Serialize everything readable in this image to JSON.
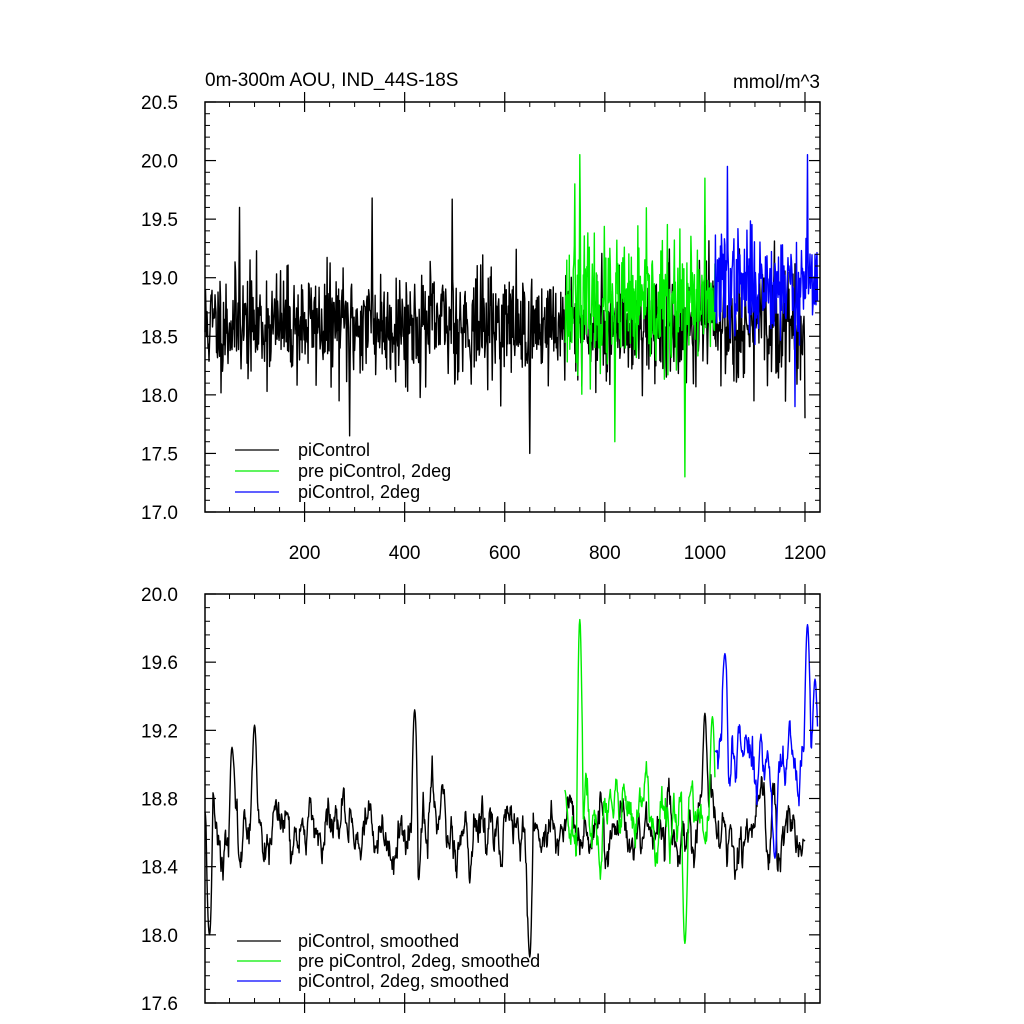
{
  "chart_data": [
    {
      "type": "line",
      "title": "0m-300m AOU, IND_44S-18S",
      "units": "mmol/m^3",
      "xlabel": "",
      "ylabel": "",
      "xlim": [
        1,
        1230
      ],
      "ylim": [
        17.0,
        20.5
      ],
      "xticks": [
        200,
        400,
        600,
        800,
        1000,
        1200
      ],
      "xtick_labels": [
        "200",
        "400",
        "600",
        "800",
        "1000",
        "1200"
      ],
      "yticks": [
        17.0,
        17.5,
        18.0,
        18.5,
        19.0,
        19.5,
        20.0,
        20.5
      ],
      "ytick_labels": [
        "17.0",
        "17.5",
        "18.0",
        "18.5",
        "19.0",
        "19.5",
        "20.0",
        "20.5"
      ],
      "legend_position": "bottom-left",
      "series": [
        {
          "name": "piControl",
          "color": "#000000",
          "x_start": 1,
          "x_end": 1200,
          "mean": 18.6,
          "amplitude": 0.42,
          "seed": 11,
          "anchors": [
            [
              70,
              19.6
            ],
            [
              290,
              17.65
            ],
            [
              335,
              19.68
            ],
            [
              495,
              19.67
            ],
            [
              650,
              17.5
            ],
            [
              1000,
              19.45
            ],
            [
              1200,
              17.8
            ]
          ]
        },
        {
          "name": "pre piControl, 2deg",
          "color": "#00ee00",
          "x_start": 720,
          "x_end": 1020,
          "mean": 18.75,
          "amplitude": 0.5,
          "seed": 23,
          "anchors": [
            [
              750,
              20.05
            ],
            [
              740,
              19.8
            ],
            [
              820,
              17.6
            ],
            [
              960,
              17.3
            ],
            [
              1000,
              19.85
            ]
          ]
        },
        {
          "name": "piControl, 2deg",
          "color": "#0000ff",
          "x_start": 1020,
          "x_end": 1225,
          "mean": 18.95,
          "amplitude": 0.4,
          "seed": 37,
          "anchors": [
            [
              1045,
              19.95
            ],
            [
              1180,
              17.9
            ],
            [
              1205,
              20.05
            ],
            [
              1220,
              19.2
            ]
          ]
        }
      ]
    },
    {
      "type": "line",
      "title": "",
      "xlabel": "",
      "ylabel": "",
      "xlim": [
        1,
        1230
      ],
      "ylim": [
        17.6,
        20.0
      ],
      "xticks": [
        200,
        400,
        600,
        800,
        1000,
        1200
      ],
      "xtick_labels": [],
      "yticks": [
        17.6,
        18.0,
        18.4,
        18.8,
        19.2,
        19.6,
        20.0
      ],
      "ytick_labels": [
        "17.6",
        "18.0",
        "18.4",
        "18.8",
        "19.2",
        "19.6",
        "20.0"
      ],
      "legend_position": "bottom-left",
      "series": [
        {
          "name": "piControl, smoothed",
          "color": "#000000",
          "x_start": 1,
          "x_end": 1200,
          "mean": 18.62,
          "amplitude": 0.28,
          "seed": 11,
          "anchors": [
            [
              10,
              18.0
            ],
            [
              55,
              19.1
            ],
            [
              100,
              19.23
            ],
            [
              420,
              19.32
            ],
            [
              650,
              17.87
            ],
            [
              1000,
              19.3
            ],
            [
              1200,
              18.55
            ]
          ]
        },
        {
          "name": "pre piControl, 2deg, smoothed",
          "color": "#00ee00",
          "x_start": 720,
          "x_end": 1020,
          "mean": 18.65,
          "amplitude": 0.3,
          "seed": 23,
          "anchors": [
            [
              720,
              18.85
            ],
            [
              750,
              19.85
            ],
            [
              960,
              17.95
            ],
            [
              1015,
              19.28
            ]
          ]
        },
        {
          "name": "piControl, 2deg, smoothed",
          "color": "#0000ff",
          "x_start": 1020,
          "x_end": 1225,
          "mean": 19.05,
          "amplitude": 0.3,
          "seed": 37,
          "anchors": [
            [
              1020,
              19.08
            ],
            [
              1040,
              19.65
            ],
            [
              1140,
              18.45
            ],
            [
              1205,
              19.82
            ],
            [
              1220,
              19.5
            ]
          ]
        }
      ]
    }
  ]
}
